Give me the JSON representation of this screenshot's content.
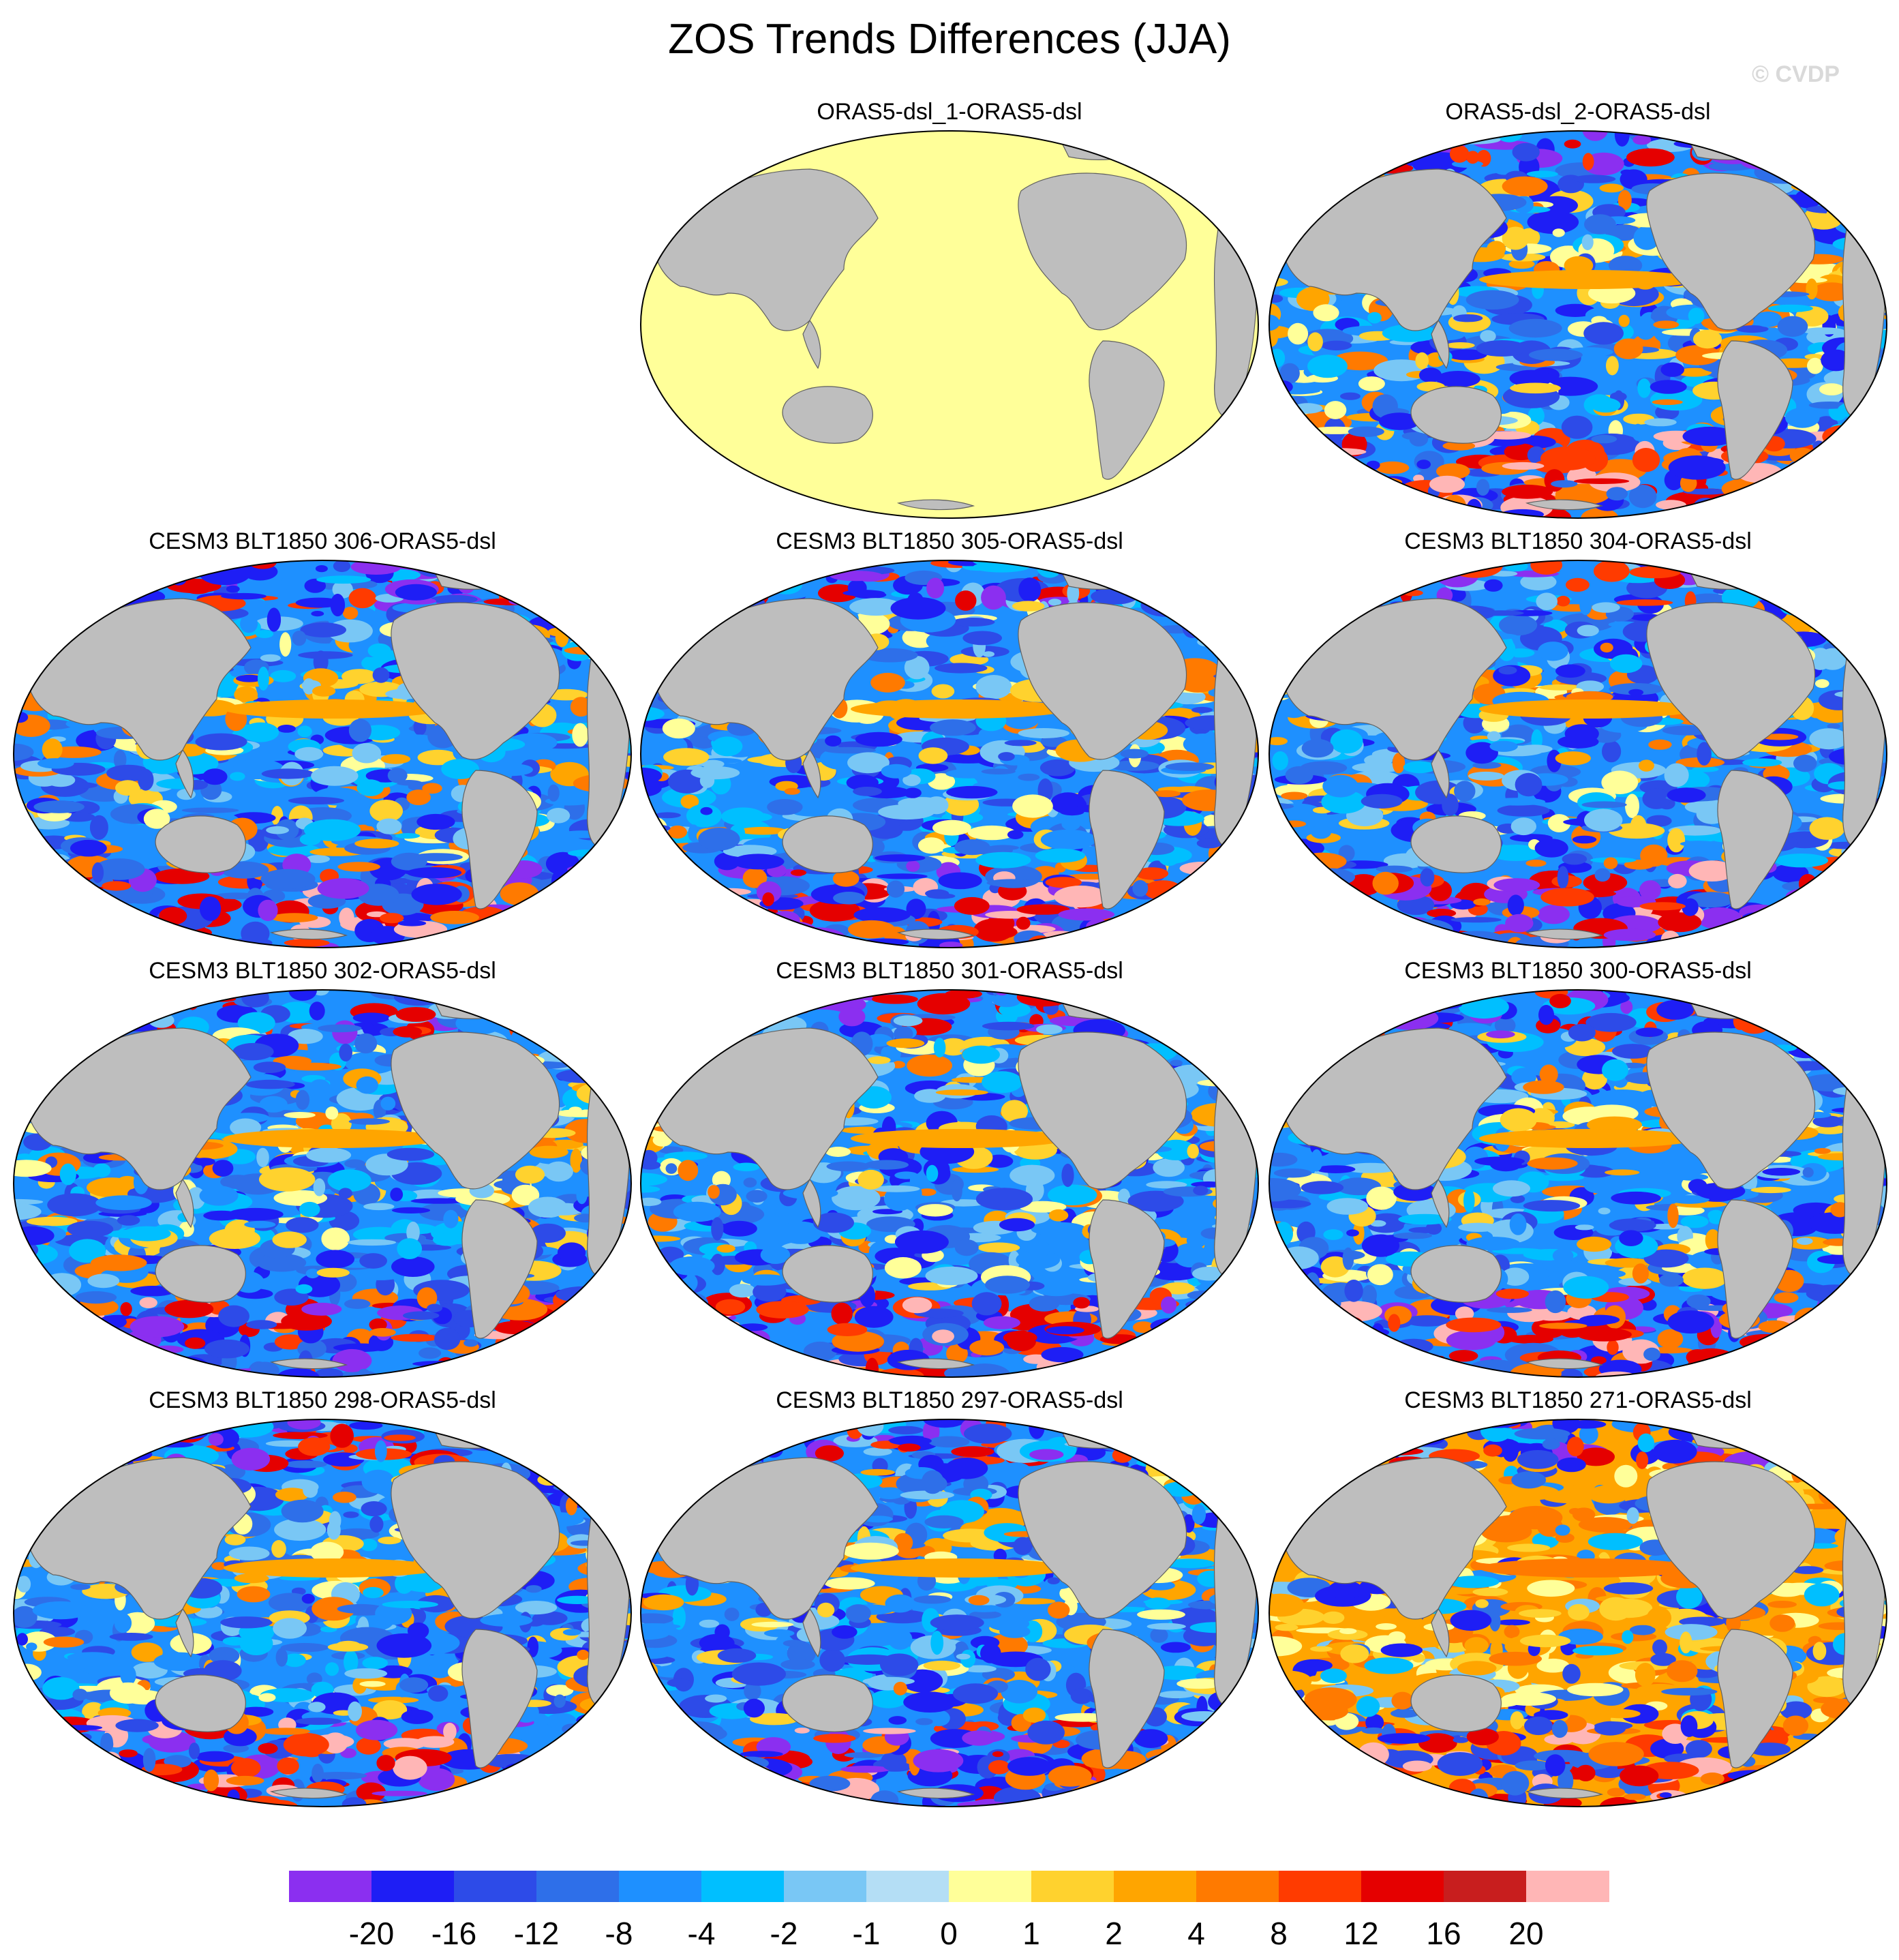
{
  "title": "ZOS Trends Differences (JJA)",
  "copyright": "© CVDP",
  "panels": [
    {
      "title": "ORAS5-dsl_1-ORAS5-dsl",
      "pattern": "zero"
    },
    {
      "title": "ORAS5-dsl_2-ORAS5-dsl",
      "pattern": "mixed"
    },
    {
      "title": "CESM3 BLT1850 306-ORAS5-dsl",
      "pattern": "model"
    },
    {
      "title": "CESM3 BLT1850 305-ORAS5-dsl",
      "pattern": "model"
    },
    {
      "title": "CESM3 BLT1850 304-ORAS5-dsl",
      "pattern": "model"
    },
    {
      "title": "CESM3 BLT1850 302-ORAS5-dsl",
      "pattern": "model"
    },
    {
      "title": "CESM3 BLT1850 301-ORAS5-dsl",
      "pattern": "model"
    },
    {
      "title": "CESM3 BLT1850 300-ORAS5-dsl",
      "pattern": "model"
    },
    {
      "title": "CESM3 BLT1850 298-ORAS5-dsl",
      "pattern": "model"
    },
    {
      "title": "CESM3 BLT1850 297-ORAS5-dsl",
      "pattern": "model"
    },
    {
      "title": "CESM3 BLT1850 271-ORAS5-dsl",
      "pattern": "warm"
    }
  ],
  "colorbar": {
    "colors": [
      "#8b2ff0",
      "#1e1ef5",
      "#2d4be8",
      "#2e6fe9",
      "#1e90ff",
      "#00bfff",
      "#79c7f5",
      "#b4def5",
      "#ffff99",
      "#ffd22e",
      "#ffa500",
      "#ff7a00",
      "#ff3b00",
      "#e50000",
      "#c81e1e",
      "#ffb6b6"
    ],
    "labels": [
      "-20",
      "-16",
      "-12",
      "-8",
      "-4",
      "-2",
      "-1",
      "0",
      "1",
      "2",
      "4",
      "8",
      "12",
      "16",
      "20"
    ]
  },
  "colors": {
    "land": "#bebebe",
    "zero_fill": "#ffff99"
  }
}
